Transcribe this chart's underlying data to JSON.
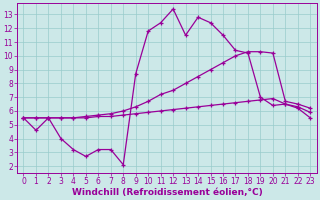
{
  "xlabel": "Windchill (Refroidissement éolien,°C)",
  "bg_color": "#cce8e8",
  "grid_color": "#99cccc",
  "line_color": "#990099",
  "x_ticks": [
    0,
    1,
    2,
    3,
    4,
    5,
    6,
    7,
    8,
    9,
    10,
    11,
    12,
    13,
    14,
    15,
    16,
    17,
    18,
    19,
    20,
    21,
    22,
    23
  ],
  "y_ticks": [
    2,
    3,
    4,
    5,
    6,
    7,
    8,
    9,
    10,
    11,
    12,
    13
  ],
  "ylim": [
    1.5,
    13.8
  ],
  "xlim": [
    -0.5,
    23.5
  ],
  "line1_x": [
    0,
    1,
    2,
    3,
    4,
    5,
    6,
    7,
    8,
    9,
    10,
    11,
    12,
    13,
    14,
    15,
    16,
    17,
    18,
    19,
    20,
    21,
    22,
    23
  ],
  "line1_y": [
    5.5,
    4.6,
    5.5,
    4.0,
    3.2,
    2.7,
    3.2,
    3.2,
    2.1,
    8.7,
    11.8,
    12.4,
    13.4,
    11.5,
    12.8,
    12.4,
    11.5,
    10.4,
    10.2,
    7.0,
    6.4,
    6.5,
    6.2,
    5.5
  ],
  "line2_x": [
    0,
    1,
    2,
    3,
    4,
    5,
    6,
    7,
    8,
    9,
    10,
    11,
    12,
    13,
    14,
    15,
    16,
    17,
    18,
    19,
    20,
    21,
    22,
    23
  ],
  "line2_y": [
    5.5,
    5.5,
    5.5,
    5.5,
    5.5,
    5.6,
    5.7,
    5.8,
    6.0,
    6.3,
    6.7,
    7.2,
    7.5,
    8.0,
    8.5,
    9.0,
    9.5,
    10.0,
    10.3,
    10.3,
    10.2,
    6.7,
    6.5,
    6.2
  ],
  "line3_x": [
    0,
    1,
    2,
    3,
    4,
    5,
    6,
    7,
    8,
    9,
    10,
    11,
    12,
    13,
    14,
    15,
    16,
    17,
    18,
    19,
    20,
    21,
    22,
    23
  ],
  "line3_y": [
    5.5,
    5.5,
    5.5,
    5.5,
    5.5,
    5.5,
    5.6,
    5.6,
    5.7,
    5.8,
    5.9,
    6.0,
    6.1,
    6.2,
    6.3,
    6.4,
    6.5,
    6.6,
    6.7,
    6.8,
    6.9,
    6.5,
    6.3,
    5.9
  ],
  "linewidth": 0.9,
  "tick_fontsize": 5.5,
  "xlabel_fontsize": 6.5
}
